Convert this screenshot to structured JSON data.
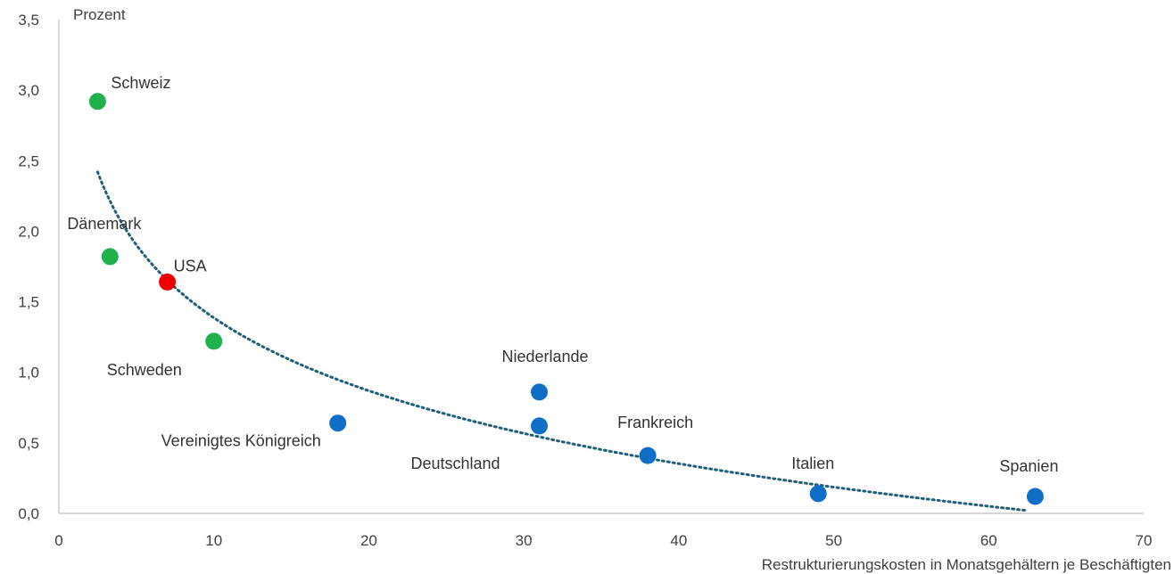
{
  "chart_data": {
    "type": "scatter",
    "title": "",
    "ylabel": "Prozent",
    "xlabel": "Restrukturierungskosten in Monatsgehältern je Beschäftigten",
    "xlim": [
      0,
      70
    ],
    "ylim": [
      0,
      3.5
    ],
    "x_ticks": [
      "0",
      "10",
      "20",
      "30",
      "40",
      "50",
      "60",
      "70"
    ],
    "y_ticks": [
      "0,0",
      "0,5",
      "1,0",
      "1,5",
      "2,0",
      "2,5",
      "3,0",
      "3,5"
    ],
    "grid": false,
    "legend": "none",
    "trendline": {
      "style": "dotted",
      "color": "#1f5f7a",
      "x_start": 2.5,
      "x_end": 62.5,
      "fit": "logarithmic"
    },
    "colors": {
      "green": "#21b14c",
      "red": "#ee0000",
      "blue": "#0f6fc6",
      "axis": "#bfbfbf"
    },
    "points": [
      {
        "label": "Schweiz",
        "x": 2.5,
        "y": 2.92,
        "color": "#21b14c"
      },
      {
        "label": "Dänemark",
        "x": 3.3,
        "y": 1.82,
        "color": "#21b14c"
      },
      {
        "label": "USA",
        "x": 7.0,
        "y": 1.64,
        "color": "#ee0000"
      },
      {
        "label": "Schweden",
        "x": 10.0,
        "y": 1.22,
        "color": "#21b14c"
      },
      {
        "label": "Vereinigtes Königreich",
        "x": 18.0,
        "y": 0.64,
        "color": "#0f6fc6"
      },
      {
        "label": "Niederlande",
        "x": 31.0,
        "y": 0.86,
        "color": "#0f6fc6"
      },
      {
        "label": "Deutschland",
        "x": 31.0,
        "y": 0.62,
        "color": "#0f6fc6"
      },
      {
        "label": "Frankreich",
        "x": 38.0,
        "y": 0.41,
        "color": "#0f6fc6"
      },
      {
        "label": "Italien",
        "x": 49.0,
        "y": 0.14,
        "color": "#0f6fc6"
      },
      {
        "label": "Spanien",
        "x": 63.0,
        "y": 0.12,
        "color": "#0f6fc6"
      }
    ]
  }
}
